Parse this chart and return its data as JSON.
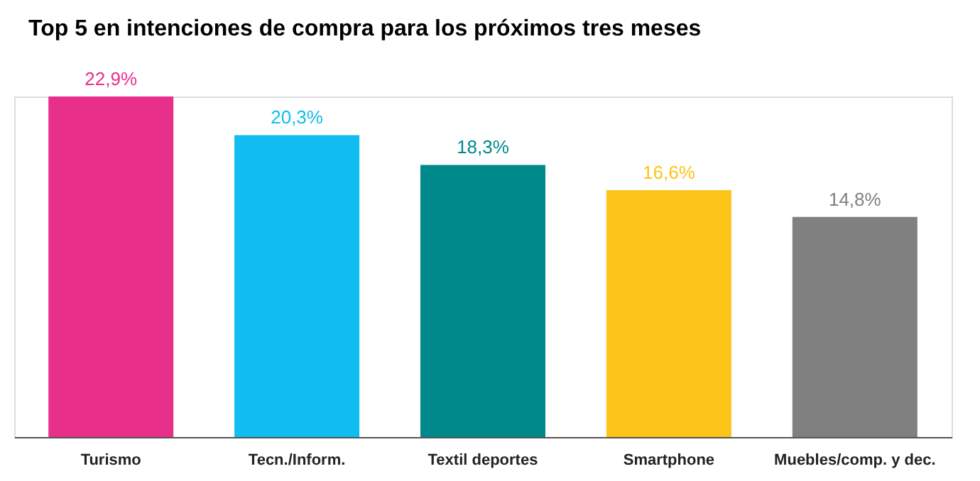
{
  "chart_data": {
    "type": "bar",
    "title": "Top 5 en intenciones de compra para los próximos tres meses",
    "categories": [
      "Turismo",
      "Tecn./Inform.",
      "Textil deportes",
      "Smartphone",
      "Muebles/comp. y dec."
    ],
    "values": [
      22.9,
      20.3,
      18.3,
      16.6,
      14.8
    ],
    "value_labels": [
      "22,9%",
      "20,3%",
      "18,3%",
      "16,6%",
      "14,8%"
    ],
    "colors": [
      "#e8308a",
      "#11bdf0",
      "#00898a",
      "#fdc41a",
      "#808080"
    ],
    "grid": false
  }
}
